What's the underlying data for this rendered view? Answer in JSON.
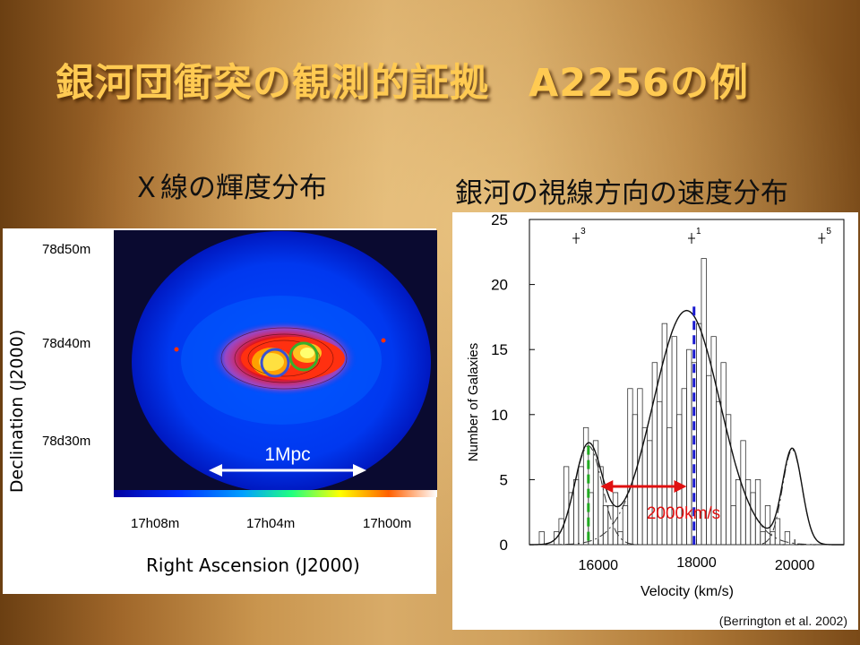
{
  "slide": {
    "title": "銀河団衝突の観測的証拠　A2256の例",
    "left_heading": "Ｘ線の輝度分布",
    "right_heading": "銀河の視線方向の速度分布"
  },
  "xray_map": {
    "y_axis_label": "Declination (J2000)",
    "x_axis_label": "Right Ascension (J2000)",
    "dec_ticks": [
      "78d50m",
      "78d40m",
      "78d30m"
    ],
    "ra_ticks": [
      "17h08m",
      "17h04m",
      "17h00m"
    ],
    "scale_label": "1Mpc",
    "circle_colors": [
      "#3a52d0",
      "#37b02b"
    ]
  },
  "velocity_plot": {
    "annotation_label": "2000km/s",
    "citation": "(Berrington et al. 2002)",
    "peak_markers": [
      "3",
      "1",
      "5"
    ]
  },
  "colors": {
    "title": "#ffca52",
    "arrow": "#e01010",
    "annotation": "#e01010",
    "green_line": "#22aa22",
    "blue_line": "#1a1ad0"
  },
  "chart_data": {
    "type": "bar",
    "xlabel": "Velocity (km/s)",
    "ylabel": "Number of Galaxies",
    "x_ticks": [
      16000,
      18000,
      20000
    ],
    "y_ticks": [
      0,
      5,
      10,
      15,
      20,
      25
    ],
    "xlim": [
      14600,
      21000
    ],
    "ylim": [
      0,
      25
    ],
    "bin_width": 100,
    "bin_start": 14600,
    "histogram": [
      0,
      0,
      1,
      0,
      0,
      1,
      2,
      6,
      4,
      5,
      6,
      9,
      4,
      8,
      6,
      3,
      3,
      4,
      1,
      3,
      12,
      10,
      12,
      9,
      8,
      14,
      11,
      17,
      9,
      16,
      10,
      12,
      15,
      14,
      17,
      22,
      13,
      16,
      11,
      14,
      10,
      3,
      5,
      8,
      5,
      4,
      5,
      1,
      3,
      1,
      2,
      0,
      1,
      0,
      0,
      0,
      0,
      0,
      0,
      0,
      0,
      0,
      0,
      0
    ],
    "gaussians": [
      {
        "mean": 15800,
        "sigma": 280,
        "amp": 7.6
      },
      {
        "mean": 17800,
        "sigma": 680,
        "amp": 18.0
      },
      {
        "mean": 19950,
        "sigma": 200,
        "amp": 7.3
      }
    ],
    "fit_line": {
      "kind": "sum of gaussians"
    },
    "vertical_markers": [
      {
        "x": 15800,
        "color": "green"
      },
      {
        "x": 17950,
        "color": "blue"
      }
    ],
    "arrow_span": [
      15900,
      17800
    ]
  }
}
